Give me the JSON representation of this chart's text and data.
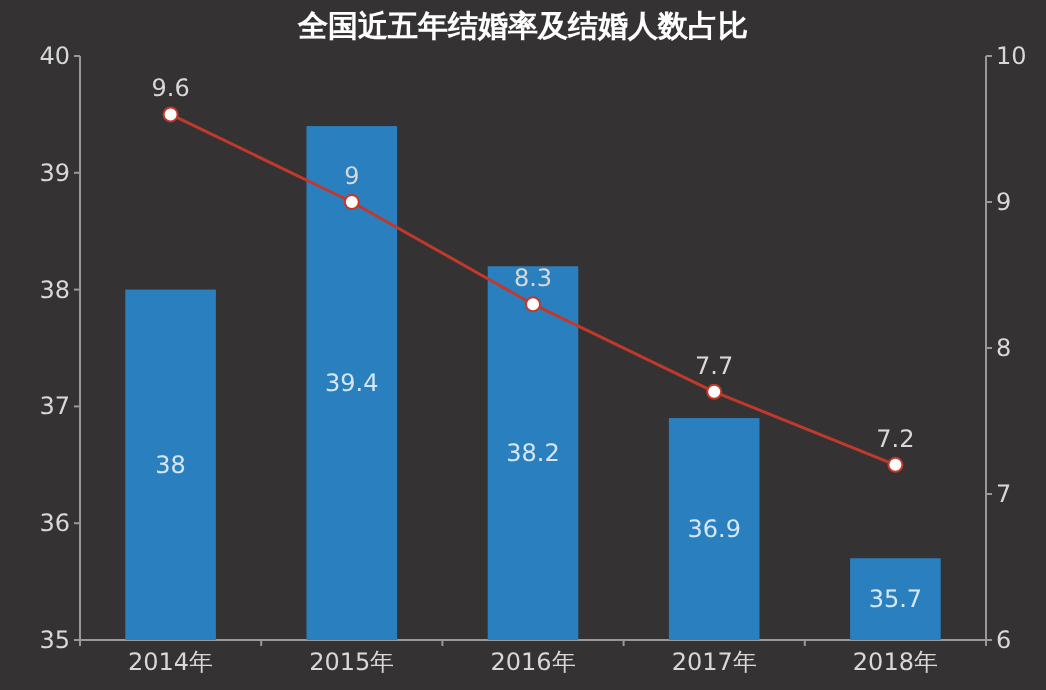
{
  "chart_data": {
    "type": "bar",
    "title": "全国近五年结婚率及结婚人数占比",
    "categories": [
      "2014年",
      "2015年",
      "2016年",
      "2017年",
      "2018年"
    ],
    "series": [
      {
        "color": "#2a80bf",
        "values": [
          38,
          39.4,
          38.2,
          36.9,
          35.7
        ]
      },
      {
        "type": "line",
        "axis": "y2",
        "color": "#c0392b",
        "marker": "circle",
        "values": [
          9.6,
          9,
          8.3,
          7.7,
          7.2
        ]
      }
    ],
    "ylim": [
      35,
      40
    ],
    "yticks": [
      35,
      36,
      37,
      38,
      39,
      40
    ],
    "y2lim": [
      6,
      10
    ],
    "y2ticks": [
      6,
      7,
      8,
      9,
      10
    ],
    "data_labels": true
  }
}
